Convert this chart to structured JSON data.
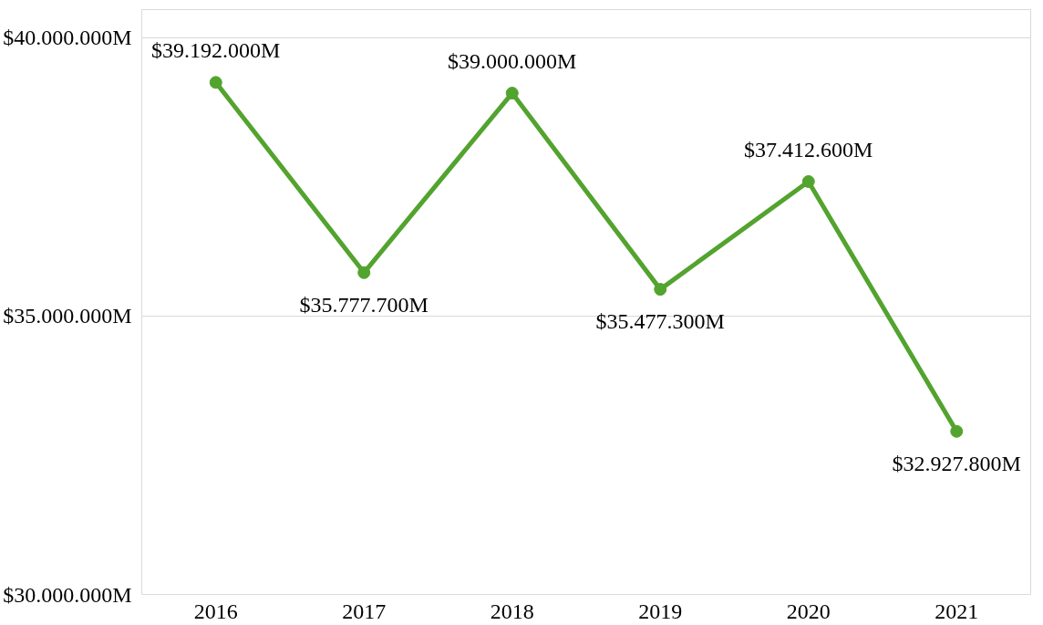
{
  "chart_data": {
    "type": "line",
    "categories": [
      "2016",
      "2017",
      "2018",
      "2019",
      "2020",
      "2021"
    ],
    "series": [
      {
        "color": "#53a32f",
        "values": [
          39192000,
          35777700,
          39000000,
          35477300,
          37412600,
          32927800
        ],
        "value_labels": [
          "$39.192.000M",
          "$35.777.700M",
          "$39.000.000M",
          "$35.477.300M",
          "$37.412.600M",
          "$32.927.800M"
        ]
      }
    ],
    "ylim": [
      30000000,
      40500000
    ],
    "yticks": [
      {
        "value": 30000000,
        "label": "$30.000.000M"
      },
      {
        "value": 35000000,
        "label": "$35.000.000M"
      },
      {
        "value": 40000000,
        "label": "$40.000.000M"
      }
    ],
    "grid": "y",
    "marker": "circle",
    "line_style": "solid"
  }
}
